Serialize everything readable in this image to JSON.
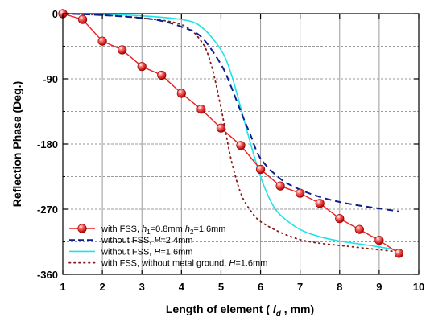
{
  "chart_data": {
    "type": "line",
    "xlabel": {
      "main": "Length of element ( ",
      "var": "l",
      "sub": "d",
      "end": " , mm)"
    },
    "ylabel": "Reflection Phase (Deg.)",
    "xlim": [
      1,
      10
    ],
    "ylim": [
      -360,
      0
    ],
    "xticks": [
      1,
      2,
      3,
      4,
      5,
      6,
      7,
      8,
      9,
      10
    ],
    "yticks": [
      0,
      -90,
      -180,
      -270,
      -360
    ],
    "grid": "vertical solid at every integer x; horizontal dashed at every 45 deg",
    "legend_position": "bottom-left",
    "series": [
      {
        "id": "fss",
        "color": "#ee1c1c",
        "style": "solid-with-sphere-markers",
        "legend": {
          "prefix": "with FSS, ",
          "v1": "h",
          "s1": "1",
          "m1": "=0.8mm ",
          "v2": "h",
          "s2": "2",
          "m2": "=1.6mm"
        },
        "x": [
          1,
          1.5,
          2,
          2.5,
          3,
          3.5,
          4,
          4.5,
          5,
          5.5,
          6,
          6.5,
          7,
          7.5,
          8,
          8.5,
          9,
          9.5
        ],
        "y": [
          0,
          -8,
          -38,
          -50,
          -73,
          -85,
          -110,
          -132,
          -158,
          -182,
          -215,
          -238,
          -248,
          -262,
          -283,
          -298,
          -313,
          -331
        ]
      },
      {
        "id": "no-fss-24",
        "color": "#0c1e8c",
        "style": "dashed",
        "legend": {
          "prefix": "without FSS, ",
          "v1": "H",
          "m1": "=2.4mm"
        },
        "x": [
          1,
          2,
          3,
          3.5,
          4,
          4.5,
          5,
          5.25,
          5.5,
          5.75,
          6,
          6.5,
          7,
          7.5,
          8,
          8.5,
          9,
          9.5
        ],
        "y": [
          0,
          -2,
          -6,
          -10,
          -18,
          -32,
          -70,
          -100,
          -135,
          -168,
          -200,
          -228,
          -243,
          -253,
          -260,
          -265,
          -269,
          -273
        ]
      },
      {
        "id": "no-fss-16",
        "color": "#1ee3e9",
        "style": "solid",
        "legend": {
          "prefix": "without FSS, ",
          "v1": "H",
          "m1": "=1.6mm"
        },
        "x": [
          1,
          2,
          3,
          4,
          4.5,
          5,
          5.25,
          5.5,
          5.75,
          6,
          6.25,
          6.5,
          7,
          7.5,
          8,
          8.5,
          9,
          9.5
        ],
        "y": [
          0,
          -1,
          -3,
          -8,
          -18,
          -50,
          -82,
          -130,
          -180,
          -225,
          -258,
          -278,
          -298,
          -308,
          -314,
          -318,
          -322,
          -327
        ]
      },
      {
        "id": "fss-no-ground",
        "color": "#8b1a1a",
        "style": "dotted",
        "legend": {
          "prefix": "with FSS, without metal ground,  ",
          "v1": "H",
          "m1": "=1.6mm"
        },
        "x": [
          1,
          2,
          3,
          4,
          4.5,
          4.75,
          5,
          5.25,
          5.5,
          5.75,
          6,
          6.5,
          7,
          7.5,
          8,
          8.5,
          9,
          9.5
        ],
        "y": [
          0,
          -2,
          -6,
          -15,
          -38,
          -70,
          -130,
          -200,
          -248,
          -272,
          -287,
          -302,
          -312,
          -317,
          -320,
          -323,
          -326,
          -329
        ]
      }
    ]
  }
}
